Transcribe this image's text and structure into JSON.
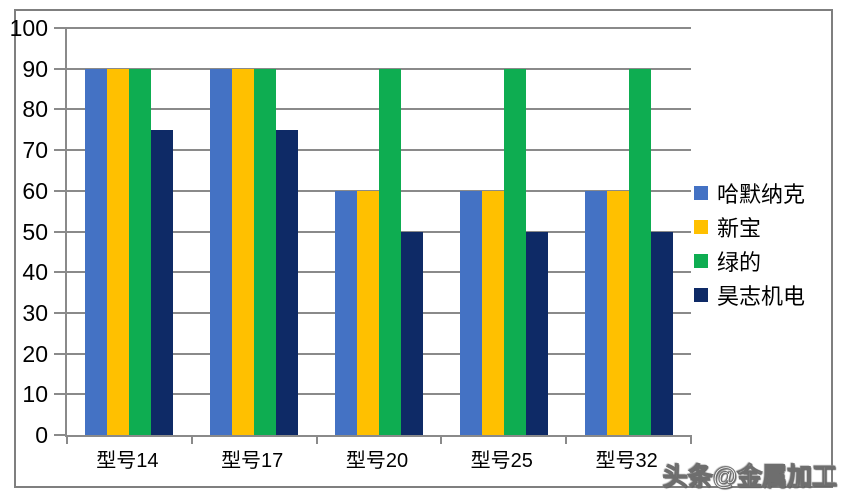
{
  "chart_data": {
    "type": "bar",
    "title": "",
    "xlabel": "",
    "ylabel": "",
    "categories": [
      "型号14",
      "型号17",
      "型号20",
      "型号25",
      "型号32"
    ],
    "series": [
      {
        "name": "哈默纳克",
        "color": "#4472C4",
        "values": [
          90,
          90,
          60,
          60,
          60
        ]
      },
      {
        "name": "新宝",
        "color": "#FFC000",
        "values": [
          90,
          90,
          60,
          60,
          60
        ]
      },
      {
        "name": "绿的",
        "color": "#0EAD51",
        "values": [
          90,
          90,
          90,
          90,
          90
        ]
      },
      {
        "name": "昊志机电",
        "color": "#0E2A66",
        "values": [
          75,
          75,
          50,
          50,
          50
        ]
      }
    ],
    "ylim": [
      0,
      100
    ],
    "yticks": [
      0,
      10,
      20,
      30,
      40,
      50,
      60,
      70,
      80,
      90,
      100
    ],
    "grid": true,
    "legend_position": "right"
  },
  "watermark": {
    "text": "头条@金属加工"
  },
  "colors": {
    "gridline": "#8A8A8A",
    "axis": "#8A8A8A",
    "frame_border": "#7F7F7F",
    "text": "#000000",
    "background": "#FFFFFF"
  }
}
